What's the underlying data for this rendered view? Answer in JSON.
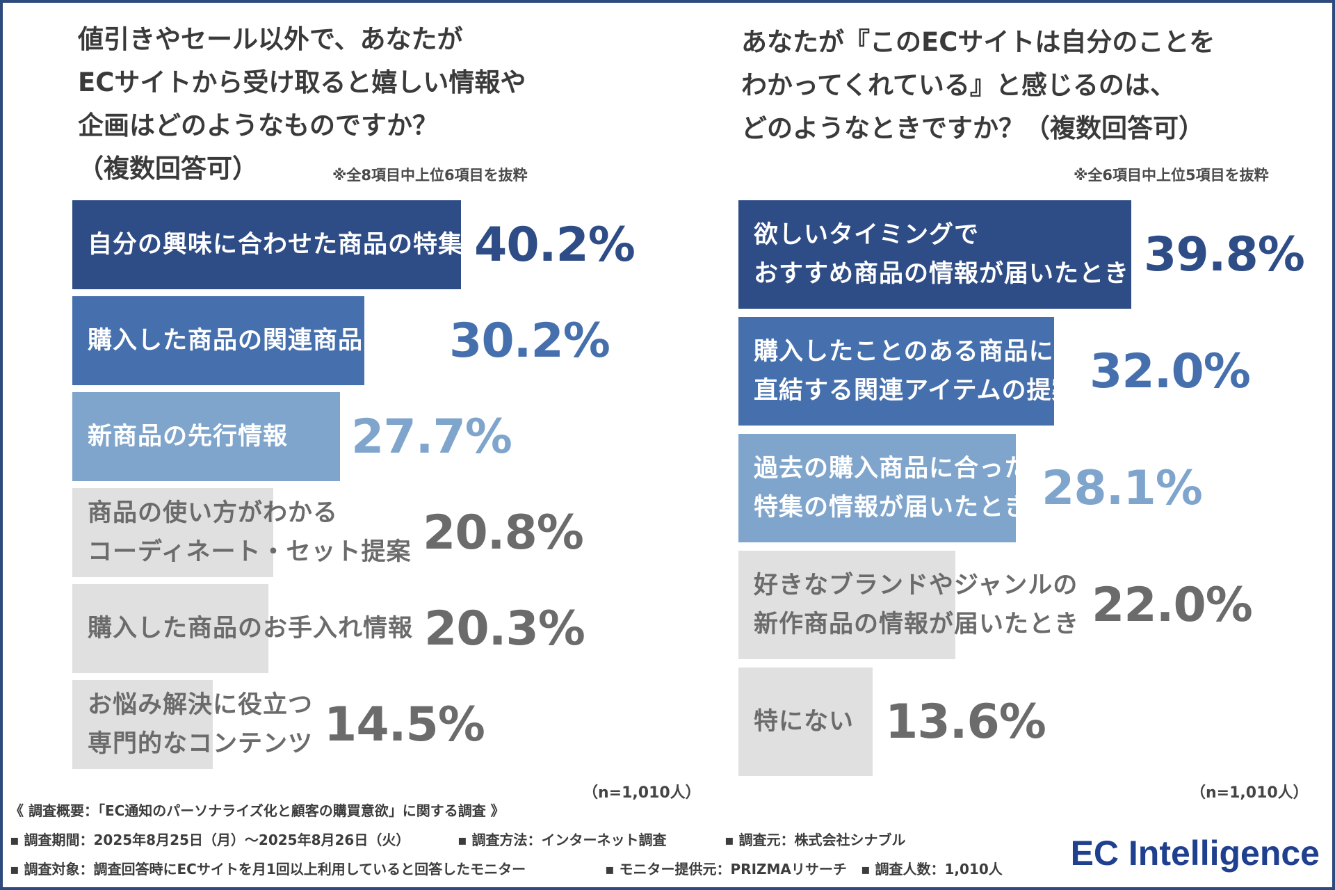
{
  "colors": {
    "frame": "#2f4a7c",
    "tier1": "#2e4c86",
    "tier2": "#4670ad",
    "tier3": "#7fa5cc",
    "tier4": "#e0e0e0",
    "gray_text": "#6b6b6b"
  },
  "chart_data": [
    {
      "type": "bar",
      "orientation": "horizontal",
      "title": "値引きやセール以外で、あなたが\nECサイトから受け取ると嬉しい情報や\n企画はどのようなものですか？\n（複数回答可）",
      "note": "※全8項目中上位6項目を抜粋",
      "sample": "（n=1,010人）",
      "unit": "%",
      "xlim": [
        0,
        60
      ],
      "categories": [
        "自分の興味に合わせた商品の特集",
        "購入した商品の関連商品の提案",
        "新商品の先行情報",
        "商品の使い方がわかる\nコーディネート・セット提案",
        "購入した商品のお手入れ情報",
        "お悩み解決に役立つ\n専門的なコンテンツ"
      ],
      "values": [
        40.2,
        30.2,
        27.7,
        20.8,
        20.3,
        14.5
      ],
      "value_labels": [
        "40.2%",
        "30.2%",
        "27.7%",
        "20.8%",
        "20.3%",
        "14.5%"
      ]
    },
    {
      "type": "bar",
      "orientation": "horizontal",
      "title": "あなたが『このECサイトは自分のことを\nわかってくれている』と感じるのは、\nどのようなときですか？（複数回答可）",
      "note": "※全6項目中上位5項目を抜粋",
      "sample": "（n=1,010人）",
      "unit": "%",
      "xlim": [
        0,
        60
      ],
      "categories": [
        "欲しいタイミングで\nおすすめ商品の情報が届いたとき",
        "購入したことのある商品に\n直結する関連アイテムの提案",
        "過去の購入商品に合った\n特集の情報が届いたとき",
        "好きなブランドやジャンルの\n新作商品の情報が届いたとき",
        "特にない"
      ],
      "values": [
        39.8,
        32.0,
        28.1,
        22.0,
        13.6
      ],
      "value_labels": [
        "39.8%",
        "32.0%",
        "28.1%",
        "22.0%",
        "13.6%"
      ]
    }
  ],
  "footer": {
    "summary": "《 調査概要：「EC通知のパーソナライズ化と顧客の購買意欲」に関する調査 》",
    "period": "▪ 調査期間：2025年8月25日（月）〜2025年8月26日（火）",
    "method": "▪ 調査方法：インターネット調査",
    "organizer": "▪ 調査元：株式会社シナブル",
    "target": "▪ 調査対象：調査回答時にECサイトを月1回以上利用していると回答したモニター",
    "provider": "▪ モニター提供元：PRIZMAリサーチ",
    "count": "▪ 調査人数：1,010人"
  },
  "logo": "EC Intelligence"
}
